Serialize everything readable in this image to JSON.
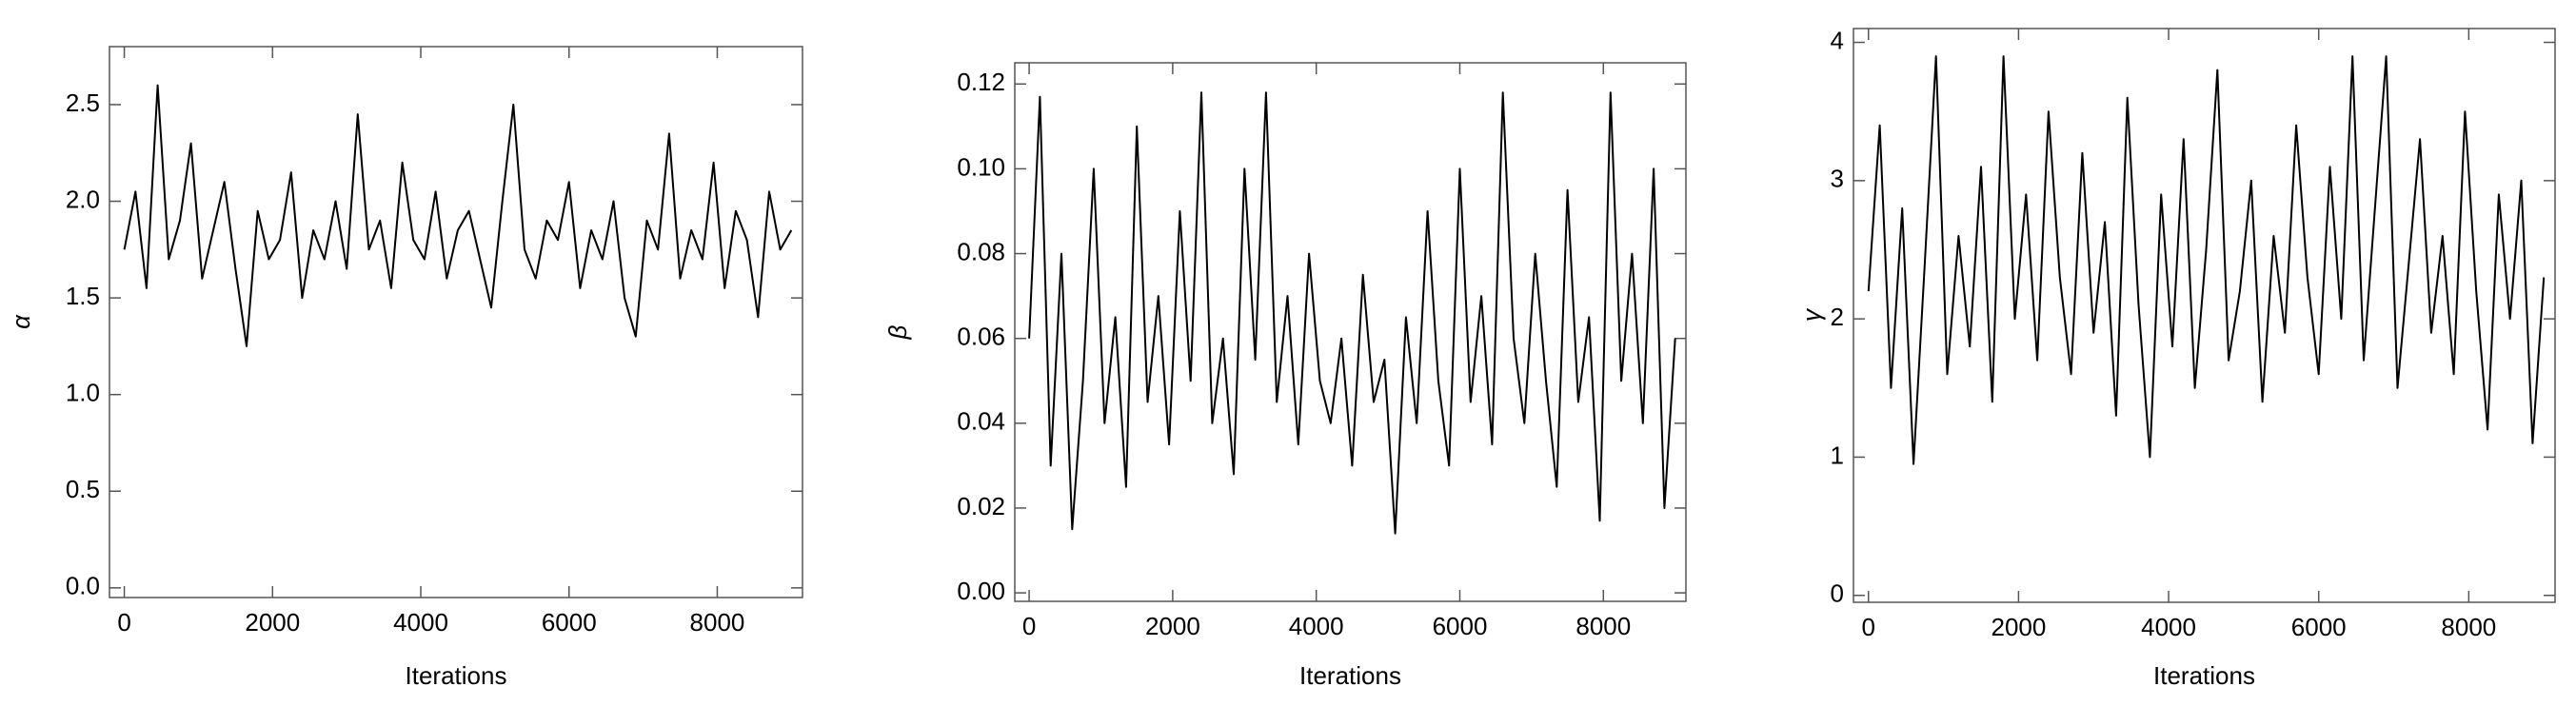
{
  "chart_data": [
    {
      "type": "line",
      "ylabel": "α",
      "xlabel": "Iterations",
      "x": [
        0,
        150,
        300,
        450,
        600,
        750,
        900,
        1050,
        1200,
        1350,
        1500,
        1650,
        1800,
        1950,
        2100,
        2250,
        2400,
        2550,
        2700,
        2850,
        3000,
        3150,
        3300,
        3450,
        3600,
        3750,
        3900,
        4050,
        4200,
        4350,
        4500,
        4650,
        4800,
        4950,
        5100,
        5250,
        5400,
        5550,
        5700,
        5850,
        6000,
        6150,
        6300,
        6450,
        6600,
        6750,
        6900,
        7050,
        7200,
        7350,
        7500,
        7650,
        7800,
        7950,
        8100,
        8250,
        8400,
        8550,
        8700,
        8850,
        9000
      ],
      "series": [
        {
          "color": "#000000",
          "values": [
            1.75,
            2.05,
            1.55,
            2.6,
            1.7,
            1.9,
            2.3,
            1.6,
            1.85,
            2.1,
            1.65,
            1.25,
            1.95,
            1.7,
            1.8,
            2.15,
            1.5,
            1.85,
            1.7,
            2.0,
            1.65,
            2.45,
            1.75,
            1.9,
            1.55,
            2.2,
            1.8,
            1.7,
            2.05,
            1.6,
            1.85,
            1.95,
            1.7,
            1.45,
            2.0,
            2.5,
            1.75,
            1.6,
            1.9,
            1.8,
            2.1,
            1.55,
            1.85,
            1.7,
            2.0,
            1.5,
            1.3,
            1.9,
            1.75,
            2.35,
            1.6,
            1.85,
            1.7,
            2.2,
            1.55,
            1.95,
            1.8,
            1.4,
            2.05,
            1.75,
            1.85
          ]
        }
      ],
      "xlim": [
        -200,
        9150
      ],
      "xticks": [
        0,
        2000,
        4000,
        6000,
        8000
      ],
      "ylim": [
        -0.05,
        2.8
      ],
      "yticks": [
        {
          "value": 0,
          "label": "0.0"
        },
        0.5,
        {
          "value": 1,
          "label": "1.0"
        },
        1.5,
        {
          "value": 2,
          "label": "2.0"
        },
        2.5
      ]
    },
    {
      "type": "line",
      "ylabel": "β",
      "xlabel": "Iterations",
      "x": [
        0,
        150,
        300,
        450,
        600,
        750,
        900,
        1050,
        1200,
        1350,
        1500,
        1650,
        1800,
        1950,
        2100,
        2250,
        2400,
        2550,
        2700,
        2850,
        3000,
        3150,
        3300,
        3450,
        3600,
        3750,
        3900,
        4050,
        4200,
        4350,
        4500,
        4650,
        4800,
        4950,
        5100,
        5250,
        5400,
        5550,
        5700,
        5850,
        6000,
        6150,
        6300,
        6450,
        6600,
        6750,
        6900,
        7050,
        7200,
        7350,
        7500,
        7650,
        7800,
        7950,
        8100,
        8250,
        8400,
        8550,
        8700,
        8850,
        9000
      ],
      "series": [
        {
          "color": "#000000",
          "values": [
            0.06,
            0.117,
            0.03,
            0.08,
            0.015,
            0.05,
            0.1,
            0.04,
            0.065,
            0.025,
            0.11,
            0.045,
            0.07,
            0.035,
            0.09,
            0.05,
            0.118,
            0.04,
            0.06,
            0.028,
            0.1,
            0.055,
            0.118,
            0.045,
            0.07,
            0.035,
            0.08,
            0.05,
            0.04,
            0.06,
            0.03,
            0.075,
            0.045,
            0.055,
            0.014,
            0.065,
            0.04,
            0.09,
            0.05,
            0.03,
            0.1,
            0.045,
            0.07,
            0.035,
            0.118,
            0.06,
            0.04,
            0.08,
            0.05,
            0.025,
            0.095,
            0.045,
            0.065,
            0.017,
            0.118,
            0.05,
            0.08,
            0.04,
            0.1,
            0.02,
            0.06
          ]
        }
      ],
      "xlim": [
        -200,
        9150
      ],
      "xticks": [
        0,
        2000,
        4000,
        6000,
        8000
      ],
      "ylim": [
        -0.002,
        0.125
      ],
      "yticks": [
        {
          "value": 0,
          "label": "0.00"
        },
        0.02,
        0.04,
        0.06,
        0.08,
        {
          "value": 0.1,
          "label": "0.10"
        },
        0.12
      ]
    },
    {
      "type": "line",
      "ylabel": "γ",
      "xlabel": "Iterations",
      "x": [
        0,
        150,
        300,
        450,
        600,
        750,
        900,
        1050,
        1200,
        1350,
        1500,
        1650,
        1800,
        1950,
        2100,
        2250,
        2400,
        2550,
        2700,
        2850,
        3000,
        3150,
        3300,
        3450,
        3600,
        3750,
        3900,
        4050,
        4200,
        4350,
        4500,
        4650,
        4800,
        4950,
        5100,
        5250,
        5400,
        5550,
        5700,
        5850,
        6000,
        6150,
        6300,
        6450,
        6600,
        6750,
        6900,
        7050,
        7200,
        7350,
        7500,
        7650,
        7800,
        7950,
        8100,
        8250,
        8400,
        8550,
        8700,
        8850,
        9000
      ],
      "series": [
        {
          "color": "#000000",
          "values": [
            2.2,
            3.4,
            1.5,
            2.8,
            0.95,
            2.4,
            3.9,
            1.6,
            2.6,
            1.8,
            3.1,
            1.4,
            3.9,
            2.0,
            2.9,
            1.7,
            3.5,
            2.3,
            1.6,
            3.2,
            1.9,
            2.7,
            1.3,
            3.6,
            2.1,
            1.0,
            2.9,
            1.8,
            3.3,
            1.5,
            2.5,
            3.8,
            1.7,
            2.2,
            3.0,
            1.4,
            2.6,
            1.9,
            3.4,
            2.3,
            1.6,
            3.1,
            2.0,
            3.9,
            1.7,
            2.8,
            3.9,
            1.5,
            2.4,
            3.3,
            1.9,
            2.6,
            1.6,
            3.5,
            2.2,
            1.2,
            2.9,
            2.0,
            3.0,
            1.1,
            2.3
          ]
        }
      ],
      "xlim": [
        -200,
        9150
      ],
      "xticks": [
        0,
        2000,
        4000,
        6000,
        8000
      ],
      "ylim": [
        -0.05,
        4.1
      ],
      "yticks": [
        0,
        1,
        2,
        3,
        4
      ]
    }
  ]
}
